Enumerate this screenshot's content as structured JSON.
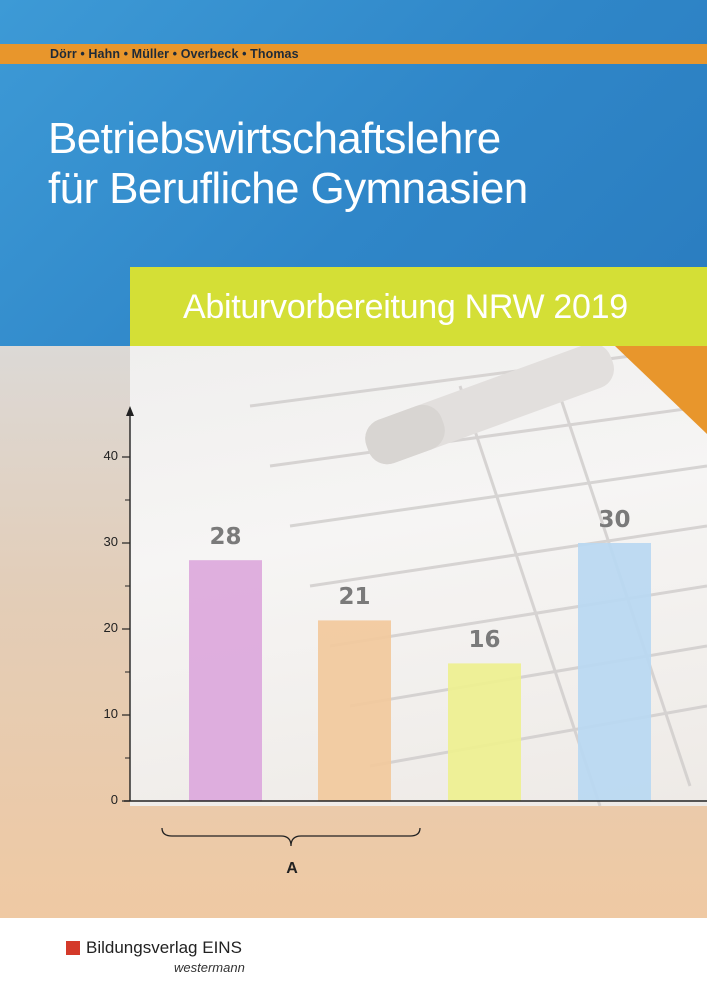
{
  "cover": {
    "authors": "Dörr • Hahn • Müller • Overbeck • Thomas",
    "title_line1": "Betriebswirtschaftslehre",
    "title_line2": "für Berufliche Gymnasien",
    "subtitle": "Abiturvorbereitung NRW 2019",
    "colors": {
      "blue": "#2f86c8",
      "orange": "#e8962c",
      "lime": "#d4df36",
      "peach": "#efc9a3"
    }
  },
  "chart_data": {
    "type": "bar",
    "categories": [
      "",
      "",
      "",
      ""
    ],
    "values": [
      28,
      21,
      16,
      30
    ],
    "value_labels": [
      "28",
      "21",
      "16",
      "30"
    ],
    "bar_colors": [
      "#dca8dc",
      "#f2c99c",
      "#eef08f",
      "#b8d8f2"
    ],
    "ylim": [
      0,
      45
    ],
    "yticks": [
      0,
      10,
      20,
      30,
      40
    ],
    "ytick_labels": [
      "0",
      "10",
      "20",
      "30",
      "40"
    ],
    "minor_ticks": [
      5,
      15,
      25,
      35
    ],
    "group_brace_label": "A",
    "title": "",
    "xlabel": "",
    "ylabel": ""
  },
  "publisher": {
    "name": "Bildungsverlag EINS",
    "sub": "westermann",
    "logo_color": "#d43a2a"
  }
}
